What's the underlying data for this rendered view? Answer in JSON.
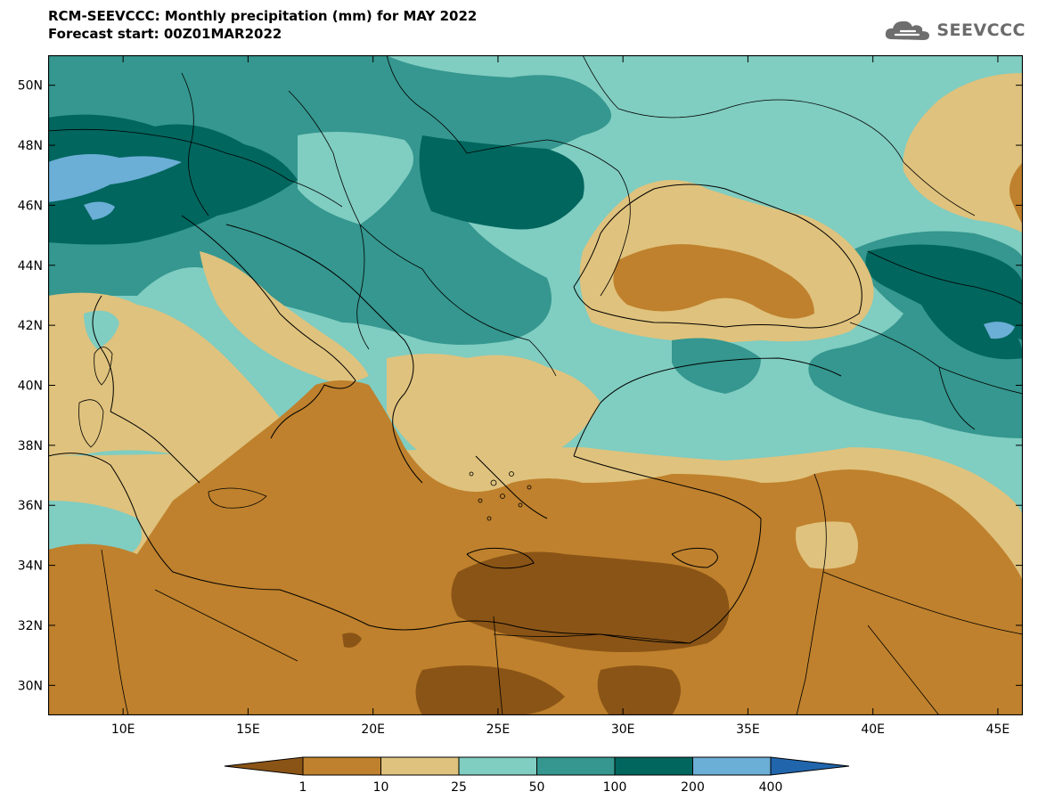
{
  "header": {
    "title": "RCM-SEEVCCC: Monthly precipitation (mm) for MAY 2022",
    "subtitle": "Forecast start: 00Z01MAR2022"
  },
  "logo": {
    "text": "SEEVCCC",
    "icon": "cloud-icon"
  },
  "map": {
    "variable": "Monthly precipitation (mm)",
    "extent": {
      "lon": [
        7,
        46
      ],
      "lat": [
        29,
        51
      ]
    },
    "lon_ticks": [
      {
        "value": 10,
        "label": "10E"
      },
      {
        "value": 15,
        "label": "15E"
      },
      {
        "value": 20,
        "label": "20E"
      },
      {
        "value": 25,
        "label": "25E"
      },
      {
        "value": 30,
        "label": "30E"
      },
      {
        "value": 35,
        "label": "35E"
      },
      {
        "value": 40,
        "label": "40E"
      },
      {
        "value": 45,
        "label": "45E"
      }
    ],
    "lat_ticks": [
      {
        "value": 30,
        "label": "30N"
      },
      {
        "value": 32,
        "label": "32N"
      },
      {
        "value": 34,
        "label": "34N"
      },
      {
        "value": 36,
        "label": "36N"
      },
      {
        "value": 38,
        "label": "38N"
      },
      {
        "value": 40,
        "label": "40N"
      },
      {
        "value": 42,
        "label": "42N"
      },
      {
        "value": 44,
        "label": "44N"
      },
      {
        "value": 46,
        "label": "46N"
      },
      {
        "value": 48,
        "label": "48N"
      },
      {
        "value": 50,
        "label": "50N"
      }
    ]
  },
  "legend": {
    "levels": [
      "1",
      "10",
      "25",
      "50",
      "100",
      "200",
      "400"
    ],
    "colors": [
      "#8a5416",
      "#bf812d",
      "#dfc27d",
      "#80cdc1",
      "#35978f",
      "#01665e",
      "#6baed6",
      "#2166ac"
    ]
  }
}
